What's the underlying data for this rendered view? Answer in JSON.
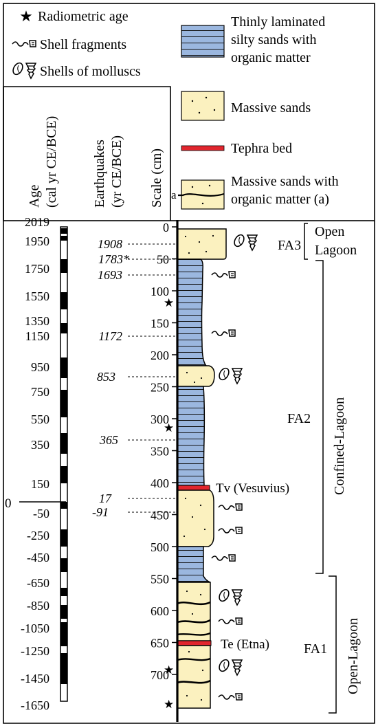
{
  "legend": {
    "radiometric_age": "Radiometric age",
    "shell_fragments": "Shell fragments",
    "shells_of_molluscs": "Shells of molluscs",
    "thinly_laminated": [
      "Thinly laminated",
      "silty sands with",
      "organic matter"
    ],
    "massive_sands": "Massive sands",
    "tephra_bed": "Tephra bed",
    "massive_sands_organic": [
      "Massive sands with",
      "organic matter (a)"
    ],
    "a_label": "a"
  },
  "headers": {
    "age": [
      "Age",
      "(cal yr CE/BCE)"
    ],
    "earthquakes": [
      "Earthquakes",
      "(yr CE/BCE)"
    ],
    "scale": "Scale (cm)"
  },
  "age_ticks": [
    "2019",
    "1950",
    "1750",
    "1550",
    "1350",
    "1150",
    "950",
    "750",
    "550",
    "350",
    "150",
    "-50",
    "-250",
    "-450",
    "-650",
    "-850",
    "-1050",
    "-1250",
    "-1450",
    "-1650"
  ],
  "zero_label": "0",
  "scale_ticks": [
    "0",
    "50",
    "100",
    "150",
    "200",
    "250",
    "300",
    "350",
    "400",
    "450",
    "500",
    "550",
    "600",
    "650",
    "700"
  ],
  "earthquakes": [
    "1908",
    "1783*",
    "1693",
    "1172",
    "853",
    "365",
    "17",
    "-91"
  ],
  "labels": {
    "tv": "Tv (Vesuvius)",
    "te": "Te (Etna)",
    "fa3": "FA3",
    "fa2": "FA2",
    "fa1": "FA1",
    "open_lagoon_top": [
      "Open",
      "Lagoon"
    ],
    "confined_lagoon": "Confined-Lagoon",
    "open_lagoon_bottom": "Open-Lagoon"
  },
  "colors": {
    "sand": "#fbf1bf",
    "silt": "#9bb7df",
    "tephra": "#e1262e"
  }
}
